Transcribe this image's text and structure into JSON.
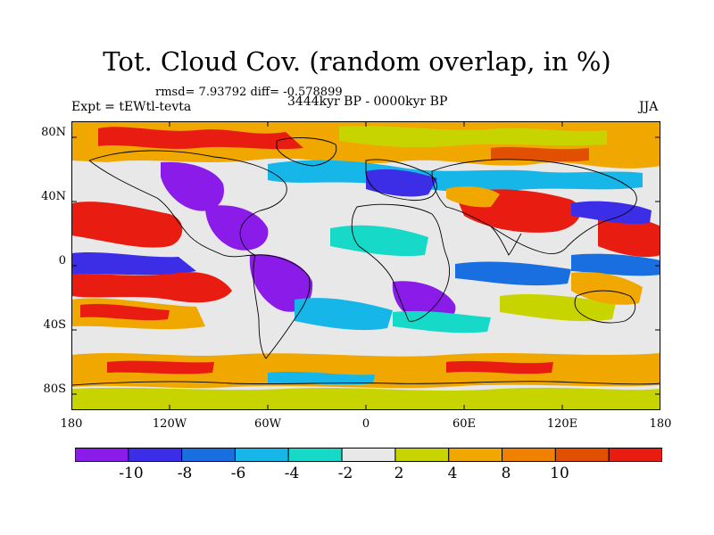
{
  "title": "Tot. Cloud Cov. (random overlap, in %)",
  "stats": "rmsd= 7.93792 diff= -0.578899",
  "experiment": "Expt = tEWtl-tevta",
  "period": "3444kyr BP - 0000kyr BP",
  "season": "JJA",
  "map": {
    "x_ticks": [
      "180",
      "120W",
      "60W",
      "0",
      "60E",
      "120E",
      "180"
    ],
    "y_ticks": [
      "80N",
      "40N",
      "0",
      "40S",
      "80S"
    ],
    "x_tick_values": [
      -180,
      -120,
      -60,
      0,
      60,
      120,
      180
    ],
    "y_tick_values": [
      80,
      40,
      0,
      -40,
      -80
    ],
    "lon_range": [
      -180,
      180
    ],
    "lat_range": [
      -90,
      90
    ]
  },
  "colorbar": {
    "labels": [
      "-10",
      "-8",
      "-6",
      "-4",
      "-2",
      "2",
      "4",
      "8",
      "10"
    ],
    "colors": [
      "#8a1be8",
      "#3b2ee6",
      "#1a6fe0",
      "#16b6e8",
      "#16d9c8",
      "#e8e8e8",
      "#c8d400",
      "#f0a800",
      "#f08000",
      "#e05000",
      "#e81c10"
    ]
  },
  "colors": {
    "background": "#ffffff",
    "coast": "#000000"
  }
}
